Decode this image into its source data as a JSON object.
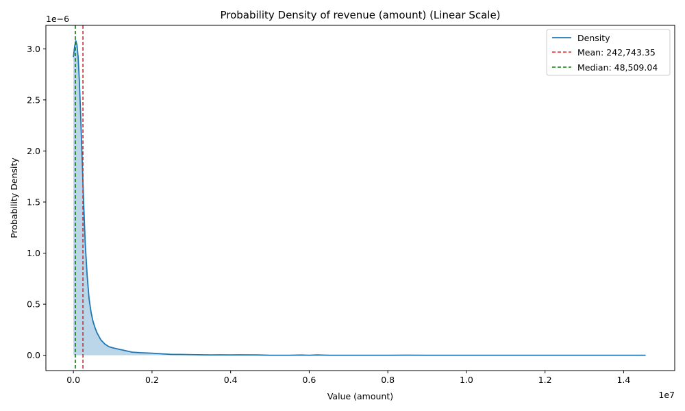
{
  "chart_data": {
    "type": "area",
    "title": "Probability Density of revenue (amount) (Linear Scale)",
    "xlabel": "Value (amount)",
    "ylabel": "Probability Density",
    "x_offset_text": "1e7",
    "y_offset_text": "1e−6",
    "xlim": [
      -0.07,
      1.53
    ],
    "ylim": [
      -0.15,
      3.23
    ],
    "x_ticks": [
      0.0,
      0.2,
      0.4,
      0.6,
      0.8,
      1.0,
      1.2,
      1.4
    ],
    "x_tick_labels": [
      "0.0",
      "0.2",
      "0.4",
      "0.6",
      "0.8",
      "1.0",
      "1.2",
      "1.4"
    ],
    "y_ticks": [
      0.0,
      0.5,
      1.0,
      1.5,
      2.0,
      2.5,
      3.0
    ],
    "y_tick_labels": [
      "0.0",
      "0.5",
      "1.0",
      "1.5",
      "2.0",
      "2.5",
      "3.0"
    ],
    "grid": false,
    "legend_position": "top-right",
    "series": [
      {
        "name": "Density",
        "color": "#1f77b4",
        "fill_color": "#1f77b4",
        "x": [
          0.0,
          0.003,
          0.006,
          0.009,
          0.012,
          0.015,
          0.018,
          0.022,
          0.026,
          0.03,
          0.035,
          0.04,
          0.045,
          0.05,
          0.055,
          0.06,
          0.07,
          0.08,
          0.09,
          0.1,
          0.12,
          0.15,
          0.17,
          0.2,
          0.25,
          0.27,
          0.3,
          0.35,
          0.37,
          0.4,
          0.42,
          0.47,
          0.5,
          0.55,
          0.58,
          0.6,
          0.62,
          0.65,
          0.7,
          0.8,
          0.85,
          0.9,
          1.0,
          1.05,
          1.1,
          1.2,
          1.3,
          1.4,
          1.456
        ],
        "y": [
          2.92,
          3.02,
          3.08,
          3.04,
          2.92,
          2.7,
          2.4,
          1.95,
          1.5,
          1.1,
          0.78,
          0.55,
          0.42,
          0.33,
          0.27,
          0.22,
          0.15,
          0.11,
          0.085,
          0.073,
          0.055,
          0.03,
          0.025,
          0.02,
          0.008,
          0.008,
          0.006,
          0.003,
          0.004,
          0.003,
          0.004,
          0.003,
          0.0,
          0.0,
          0.002,
          0.0,
          0.003,
          0.0,
          0.0,
          0.0,
          0.001,
          0.0,
          0.0,
          0.0,
          0.0,
          0.0,
          0.0,
          0.0,
          0.0
        ]
      }
    ],
    "vlines": [
      {
        "name": "Mean: 242,743.35",
        "x": 0.0242743,
        "color": "#d62728"
      },
      {
        "name": "Median: 48,509.04",
        "x": 0.0048509,
        "color": "#008000"
      }
    ]
  }
}
